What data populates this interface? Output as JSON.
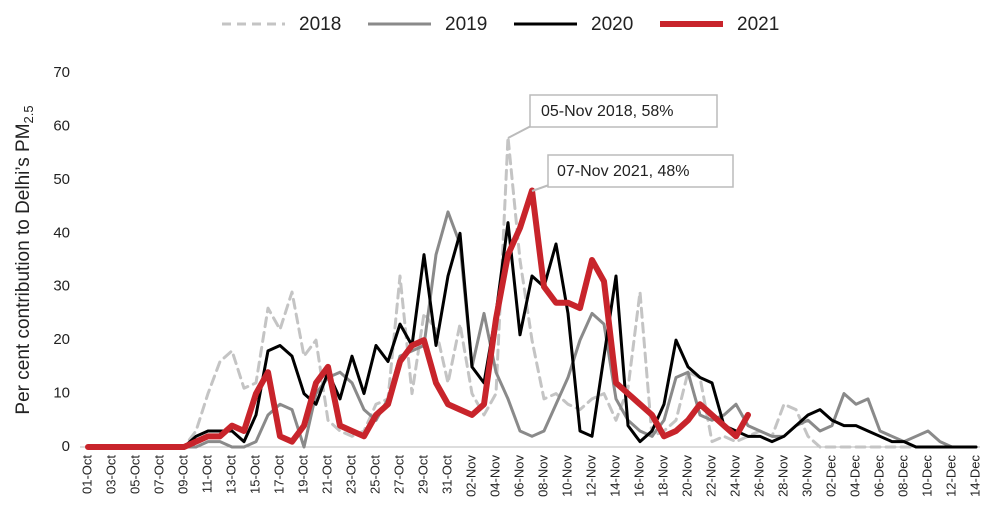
{
  "chart_data": {
    "type": "line",
    "ylabel": "Per cent contribution to Delhi’s PM",
    "ylabel_sub": "2.5",
    "categories": [
      "01-Oct",
      null,
      "03-Oct",
      null,
      "05-Oct",
      null,
      "07-Oct",
      null,
      "09-Oct",
      null,
      "11-Oct",
      null,
      "13-Oct",
      null,
      "15-Oct",
      null,
      "17-Oct",
      null,
      "19-Oct",
      null,
      "21-Oct",
      null,
      "23-Oct",
      null,
      "25-Oct",
      null,
      "27-Oct",
      null,
      "29-Oct",
      null,
      "31-Oct",
      null,
      "02-Nov",
      null,
      "04-Nov",
      null,
      "06-Nov",
      null,
      "08-Nov",
      null,
      "10-Nov",
      null,
      "12-Nov",
      null,
      "14-Nov",
      null,
      "16-Nov",
      null,
      "18-Nov",
      null,
      "20-Nov",
      null,
      "22-Nov",
      null,
      "24-Nov",
      null,
      "26-Nov",
      null,
      "28-Nov",
      null,
      "30-Nov",
      null,
      "02-Dec",
      null,
      "04-Dec",
      null,
      "06-Dec",
      null,
      "08-Dec",
      null,
      "10-Dec",
      null,
      "12-Dec",
      null,
      "14-Dec"
    ],
    "series": [
      {
        "name": "2018",
        "color": "#c4c4c4",
        "style": "dashed",
        "values": [
          0,
          0,
          0,
          0,
          0,
          0,
          0,
          0,
          0,
          3,
          10,
          16,
          18,
          11,
          12,
          26,
          22,
          29,
          17,
          20,
          5,
          3,
          2,
          3,
          8,
          9,
          32,
          10,
          25,
          22,
          12,
          23,
          10,
          6,
          10,
          58,
          35,
          20,
          9,
          10,
          8,
          7,
          9,
          10,
          5,
          11,
          29,
          2,
          3,
          5,
          14,
          13,
          1,
          2,
          1,
          2,
          3,
          2,
          8,
          7,
          2,
          0,
          0,
          0,
          0,
          0,
          0,
          0,
          0,
          0,
          0,
          0,
          0,
          0,
          0
        ]
      },
      {
        "name": "2019",
        "color": "#8a8a8a",
        "style": "solid",
        "values": [
          0,
          0,
          0,
          0,
          0,
          0,
          0,
          0,
          0,
          0,
          1,
          1,
          0,
          0,
          1,
          6,
          8,
          7,
          0,
          10,
          13,
          14,
          12,
          7,
          5,
          9,
          17,
          18,
          19,
          36,
          44,
          38,
          15,
          25,
          14,
          9,
          3,
          2,
          3,
          8,
          13,
          20,
          25,
          23,
          9,
          5,
          3,
          2,
          5,
          13,
          14,
          6,
          5,
          6,
          8,
          4,
          3,
          2,
          2,
          4,
          5,
          3,
          4,
          10,
          8,
          9,
          3,
          2,
          1,
          2,
          3,
          1,
          0,
          0,
          0
        ]
      },
      {
        "name": "2020",
        "color": "#000000",
        "style": "solid",
        "values": [
          0,
          0,
          0,
          0,
          0,
          0,
          0,
          0,
          0,
          2,
          3,
          3,
          3,
          1,
          6,
          18,
          19,
          17,
          10,
          8,
          14,
          9,
          17,
          10,
          19,
          16,
          23,
          19,
          36,
          19,
          32,
          40,
          15,
          12,
          25,
          42,
          21,
          32,
          30,
          38,
          25,
          3,
          2,
          17,
          32,
          4,
          1,
          3,
          8,
          20,
          15,
          13,
          12,
          4,
          3,
          2,
          2,
          1,
          2,
          4,
          6,
          7,
          5,
          4,
          4,
          3,
          2,
          1,
          1,
          0,
          0,
          0,
          0,
          0,
          0
        ]
      },
      {
        "name": "2021",
        "color": "#c8242b",
        "style": "thick",
        "values": [
          0,
          0,
          0,
          0,
          0,
          0,
          0,
          0,
          0,
          1,
          2,
          2,
          4,
          3,
          10,
          14,
          2,
          1,
          4,
          12,
          15,
          4,
          3,
          2,
          6,
          8,
          16,
          19,
          20,
          12,
          8,
          7,
          6,
          8,
          24,
          36,
          41,
          48,
          30,
          27,
          27,
          26,
          35,
          31,
          12,
          10,
          8,
          6,
          2,
          3,
          5,
          8,
          6,
          4,
          2,
          6,
          null,
          null,
          null,
          null,
          null,
          null,
          null,
          null,
          null,
          null,
          null,
          null,
          null,
          null,
          null,
          null,
          null,
          null,
          null
        ]
      }
    ],
    "annotations": [
      "05-Nov 2018, 58%",
      "07-Nov 2021, 48%"
    ],
    "ylim": [
      0,
      70
    ],
    "yticks": [
      0,
      10,
      20,
      30,
      40,
      50,
      60,
      70
    ],
    "grid": false,
    "legend": "top"
  }
}
